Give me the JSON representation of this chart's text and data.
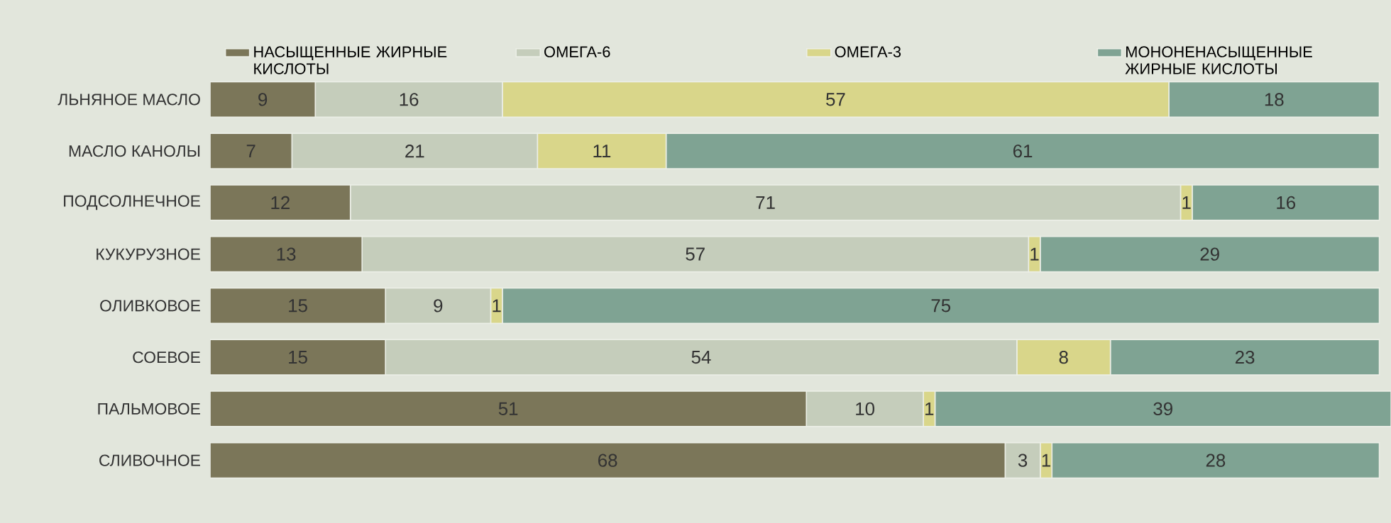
{
  "chart_data": {
    "type": "bar",
    "orientation": "horizontal",
    "stacked": true,
    "data_labels": true,
    "legend": "top",
    "tick_labels": "y",
    "categories": [
      "ЛЬНЯНОЕ МАСЛО",
      "МАСЛО КАНОЛЫ",
      "ПОДСОЛНЕЧНОЕ",
      "КУКУРУЗНОЕ",
      "ОЛИВКОВОЕ",
      "СОЕВОЕ",
      "ПАЛЬМОВОЕ",
      "СЛИВОЧНОЕ"
    ],
    "series": [
      {
        "name": "НАСЫЩЕННЫЕ ЖИРНЫЕ КИСЛОТЫ",
        "color": "#7b7659",
        "values": [
          9,
          7,
          12,
          13,
          15,
          15,
          51,
          68
        ]
      },
      {
        "name": "ОМЕГА-6",
        "color": "#c5cdbb",
        "values": [
          16,
          21,
          71,
          57,
          9,
          54,
          10,
          3
        ]
      },
      {
        "name": "ОМЕГА-3",
        "color": "#d9d68a",
        "values": [
          57,
          11,
          1,
          1,
          1,
          8,
          1,
          1
        ]
      },
      {
        "name": "МОНОНЕНАСЫЩЕННЫЕ ЖИРНЫЕ КИСЛОТЫ",
        "color": "#7fa393",
        "values": [
          18,
          61,
          16,
          29,
          75,
          23,
          39,
          28
        ]
      }
    ]
  }
}
